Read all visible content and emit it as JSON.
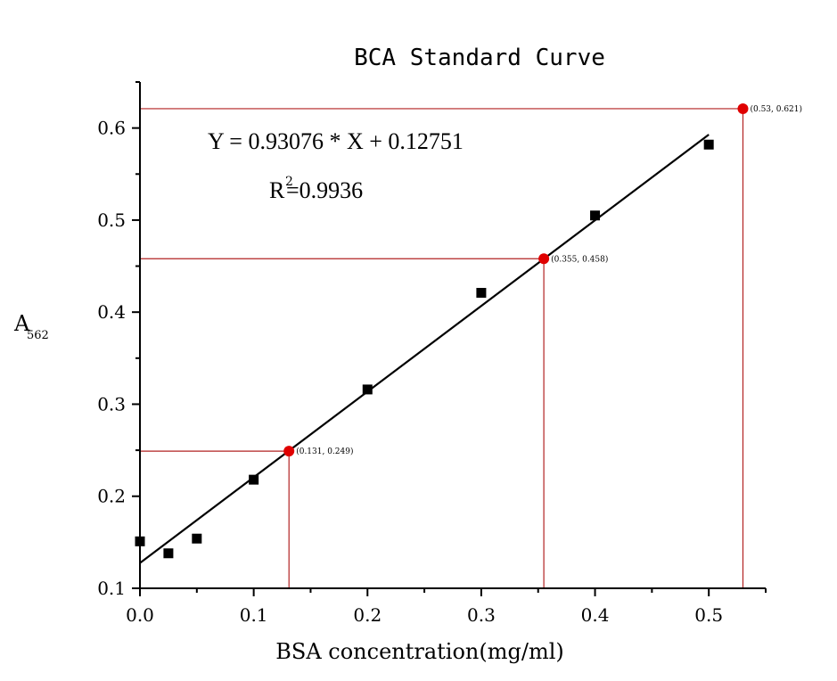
{
  "chart_data": {
    "type": "scatter",
    "title": "BCA Standard Curve",
    "xlabel": "BSA concentration(mg/ml)",
    "ylabel": {
      "main": "A",
      "sub": "562"
    },
    "xlim": [
      0,
      0.55
    ],
    "ylim": [
      0.1,
      0.65
    ],
    "xticks": [
      0.0,
      0.1,
      0.2,
      0.3,
      0.4,
      0.5
    ],
    "yticks": [
      0.1,
      0.2,
      0.3,
      0.4,
      0.5,
      0.6
    ],
    "xtick_labels": [
      "0.0",
      "0.1",
      "0.2",
      "0.3",
      "0.4",
      "0.5"
    ],
    "ytick_labels": [
      "0.1",
      "0.2",
      "0.3",
      "0.4",
      "0.5",
      "0.6"
    ],
    "grid": false,
    "series": [
      {
        "marker": "square",
        "color": "#000000",
        "x": [
          0.0,
          0.025,
          0.05,
          0.1,
          0.2,
          0.3,
          0.4,
          0.5
        ],
        "y": [
          0.151,
          0.138,
          0.154,
          0.218,
          0.316,
          0.421,
          0.505,
          0.582
        ]
      }
    ],
    "fit": {
      "slope": 0.93076,
      "intercept": 0.12751,
      "x_range": [
        0.0,
        0.5
      ],
      "color": "#000000",
      "equation": "Y = 0.93076 * X + 0.12751",
      "r2_prefix": "R",
      "r2_sup": "2",
      "r2_value": "=0.9936"
    },
    "highlighted_points": [
      {
        "x": 0.131,
        "y": 0.249,
        "label": "(0.131, 0.249)"
      },
      {
        "x": 0.355,
        "y": 0.458,
        "label": "(0.355, 0.458)"
      },
      {
        "x": 0.53,
        "y": 0.621,
        "label": "(0.53, 0.621)"
      }
    ],
    "highlight_color": "#e00000",
    "guide_color": "#b22222"
  }
}
